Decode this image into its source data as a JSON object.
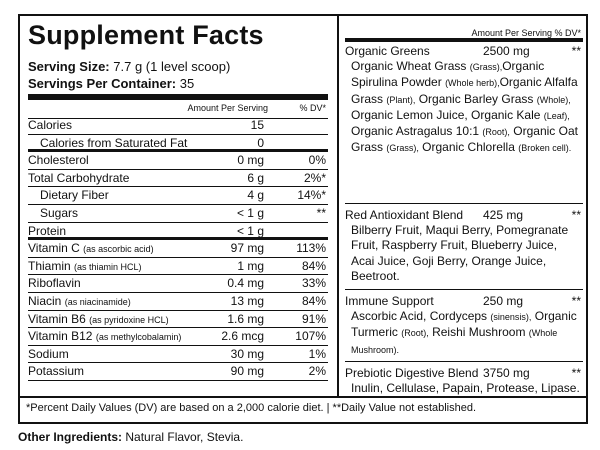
{
  "title": "Supplement Facts",
  "serving_size_label": "Serving Size:",
  "serving_size_value": "7.7 g (1 level scoop)",
  "servings_label": "Servings Per Container:",
  "servings_value": "35",
  "left_header": {
    "amount": "Amount Per Serving",
    "dv": "% DV*"
  },
  "rows": [
    {
      "name": "Calories",
      "note": "",
      "amount": "15",
      "dv": "",
      "indent": false,
      "thick": false
    },
    {
      "name": "Calories from Saturated Fat",
      "note": "",
      "amount": "0",
      "dv": "",
      "indent": true,
      "thick": true
    },
    {
      "name": "Cholesterol",
      "note": "",
      "amount": "0 mg",
      "dv": "0%",
      "indent": false,
      "thick": false
    },
    {
      "name": "Total Carbohydrate",
      "note": "",
      "amount": "6 g",
      "dv": "2%*",
      "indent": false,
      "thick": false
    },
    {
      "name": "Dietary Fiber",
      "note": "",
      "amount": "4 g",
      "dv": "14%*",
      "indent": true,
      "thick": false
    },
    {
      "name": "Sugars",
      "note": "",
      "amount": "< 1 g",
      "dv": "**",
      "indent": true,
      "thick": false
    },
    {
      "name": "Protein",
      "note": "",
      "amount": "< 1 g",
      "dv": "",
      "indent": false,
      "thick": true
    },
    {
      "name": "Vitamin C",
      "note": "(as ascorbic acid)",
      "amount": "97 mg",
      "dv": "113%",
      "indent": false,
      "thick": false
    },
    {
      "name": "Thiamin",
      "note": "(as thiamin HCL)",
      "amount": "1 mg",
      "dv": "84%",
      "indent": false,
      "thick": false
    },
    {
      "name": "Riboflavin",
      "note": "",
      "amount": "0.4 mg",
      "dv": "33%",
      "indent": false,
      "thick": false
    },
    {
      "name": "Niacin",
      "note": "(as niacinamide)",
      "amount": "13 mg",
      "dv": "84%",
      "indent": false,
      "thick": false
    },
    {
      "name": "Vitamin B6",
      "note": "(as pyridoxine HCL)",
      "amount": "1.6 mg",
      "dv": "91%",
      "indent": false,
      "thick": false
    },
    {
      "name": "Vitamin B12",
      "note": "(as methylcobalamin)",
      "amount": "2.6 mcg",
      "dv": "107%",
      "indent": false,
      "thick": false
    },
    {
      "name": "Sodium",
      "note": "",
      "amount": "30 mg",
      "dv": "1%",
      "indent": false,
      "thick": false
    },
    {
      "name": "Potassium",
      "note": "",
      "amount": "90 mg",
      "dv": "2%",
      "indent": false,
      "thick": false
    }
  ],
  "right_header": "Amount Per Serving  % DV*",
  "blends": [
    {
      "name": "Organic Greens",
      "amount": "2500 mg",
      "dv": "**",
      "ingredients": [
        {
          "t": "Organic Wheat Grass ",
          "s": "(Grass),"
        },
        {
          "t": "Organic Spirulina Powder ",
          "s": "(Whole herb),"
        },
        {
          "t": "Organic Alfalfa Grass ",
          "s": "(Plant),"
        },
        {
          "t": " Organic Barley Grass ",
          "s": "(Whole),"
        },
        {
          "t": " Organic Lemon Juice, Organic Kale ",
          "s": "(Leaf),"
        },
        {
          "t": " Organic Astragalus 10:1 ",
          "s": "(Root),"
        },
        {
          "t": " Organic Oat Grass ",
          "s": "(Grass),"
        },
        {
          "t": " Organic Chlorella ",
          "s": "(Broken cell)."
        }
      ]
    },
    {
      "name": "Red Antioxidant Blend",
      "amount": "425 mg",
      "dv": "**",
      "ingredients": [
        {
          "t": "Bilberry Fruit, Maqui Berry, Pomegranate Fruit, Raspberry Fruit, Blueberry Juice, Acai Juice, Goji Berry, Orange Juice, Beetroot.",
          "s": ""
        }
      ]
    },
    {
      "name": "Immune Support",
      "amount": "250 mg",
      "dv": "**",
      "ingredients": [
        {
          "t": "Ascorbic Acid, Cordyceps ",
          "s": "(sinensis),"
        },
        {
          "t": " Organic Turmeric ",
          "s": "(Root),"
        },
        {
          "t": " Reishi Mushroom ",
          "s": "(Whole Mushroom)."
        }
      ]
    },
    {
      "name": "Prebiotic Digestive Blend",
      "amount": "3750 mg",
      "dv": "**",
      "ingredients": [
        {
          "t": "Inulin, Cellulase, Papain, Protease, Lipase.",
          "s": ""
        }
      ]
    }
  ],
  "footnote": "*Percent Daily Values (DV) are based on a 2,000 calorie diet.  |  **Daily Value not established.",
  "other_label": "Other Ingredients:",
  "other_value": " Natural Flavor, Stevia."
}
